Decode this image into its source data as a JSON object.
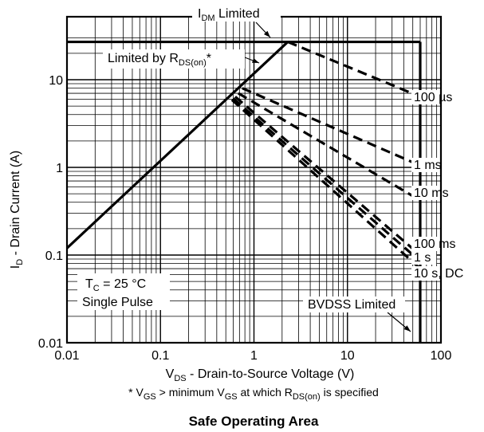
{
  "chart_data": {
    "type": "line",
    "title": "Safe Operating Area",
    "xlabel": {
      "main": "V",
      "sub": "DS",
      "rest": " - Drain-to-Source Voltage (V)"
    },
    "ylabel": {
      "main": "I",
      "sub": "D",
      "rest": " - Drain Current (A)"
    },
    "footnote": {
      "p1": "* V",
      "s1": "GS",
      "p2": " > minimum V",
      "s2": "GS",
      "p3": " at which R",
      "s3": "DS(on)",
      "p4": " is specified"
    },
    "x_scale": "log",
    "y_scale": "log",
    "xlim": [
      0.01,
      100
    ],
    "ylim": [
      0.01,
      30
    ],
    "grid": true,
    "x_ticks": [
      "0.01",
      "0.1",
      "1",
      "10",
      "100"
    ],
    "y_ticks": [
      "0.01",
      "0.1",
      "1",
      "10"
    ],
    "series": [
      {
        "name": "Limited by RDS(on)*",
        "style": "solid",
        "points": [
          [
            0.01,
            0.12
          ],
          [
            2.3,
            27
          ]
        ]
      },
      {
        "name": "IDM Limited",
        "style": "solid",
        "points": [
          [
            0.01,
            27
          ],
          [
            60,
            27
          ]
        ]
      },
      {
        "name": "BVDSS Limited",
        "style": "solid",
        "points": [
          [
            60,
            0.01
          ],
          [
            60,
            27
          ]
        ]
      },
      {
        "name": "100 µs",
        "style": "dashed",
        "points": [
          [
            2.3,
            27
          ],
          [
            60,
            6.4
          ]
        ]
      },
      {
        "name": "1 ms",
        "style": "dashed",
        "points": [
          [
            0.75,
            8
          ],
          [
            60,
            1.05
          ]
        ]
      },
      {
        "name": "10 ms",
        "style": "dashed",
        "points": [
          [
            0.68,
            7
          ],
          [
            60,
            0.42
          ]
        ]
      },
      {
        "name": "100 ms",
        "style": "dashed",
        "points": [
          [
            0.63,
            6.4
          ],
          [
            60,
            0.1
          ]
        ]
      },
      {
        "name": "1 s",
        "style": "dashed",
        "points": [
          [
            0.6,
            6.1
          ],
          [
            60,
            0.085
          ]
        ]
      },
      {
        "name": "10 s, DC",
        "style": "dashed",
        "points": [
          [
            0.58,
            5.9
          ],
          [
            60,
            0.07
          ]
        ]
      }
    ],
    "annotations": {
      "idm": {
        "main": "I",
        "sub": "DM",
        "rest": " Limited"
      },
      "rds": {
        "main": "Limited by R",
        "sub": "DS(on)",
        "rest": "*"
      },
      "bvdss": "BVDSS Limited",
      "tc": {
        "main": "T",
        "sub": "C",
        "rest": " = 25 °C"
      },
      "pulse": "Single Pulse"
    },
    "curve_labels": [
      "100 µs",
      "1 ms",
      "10 ms",
      "100 ms",
      "1 s",
      "10 s, DC"
    ]
  }
}
